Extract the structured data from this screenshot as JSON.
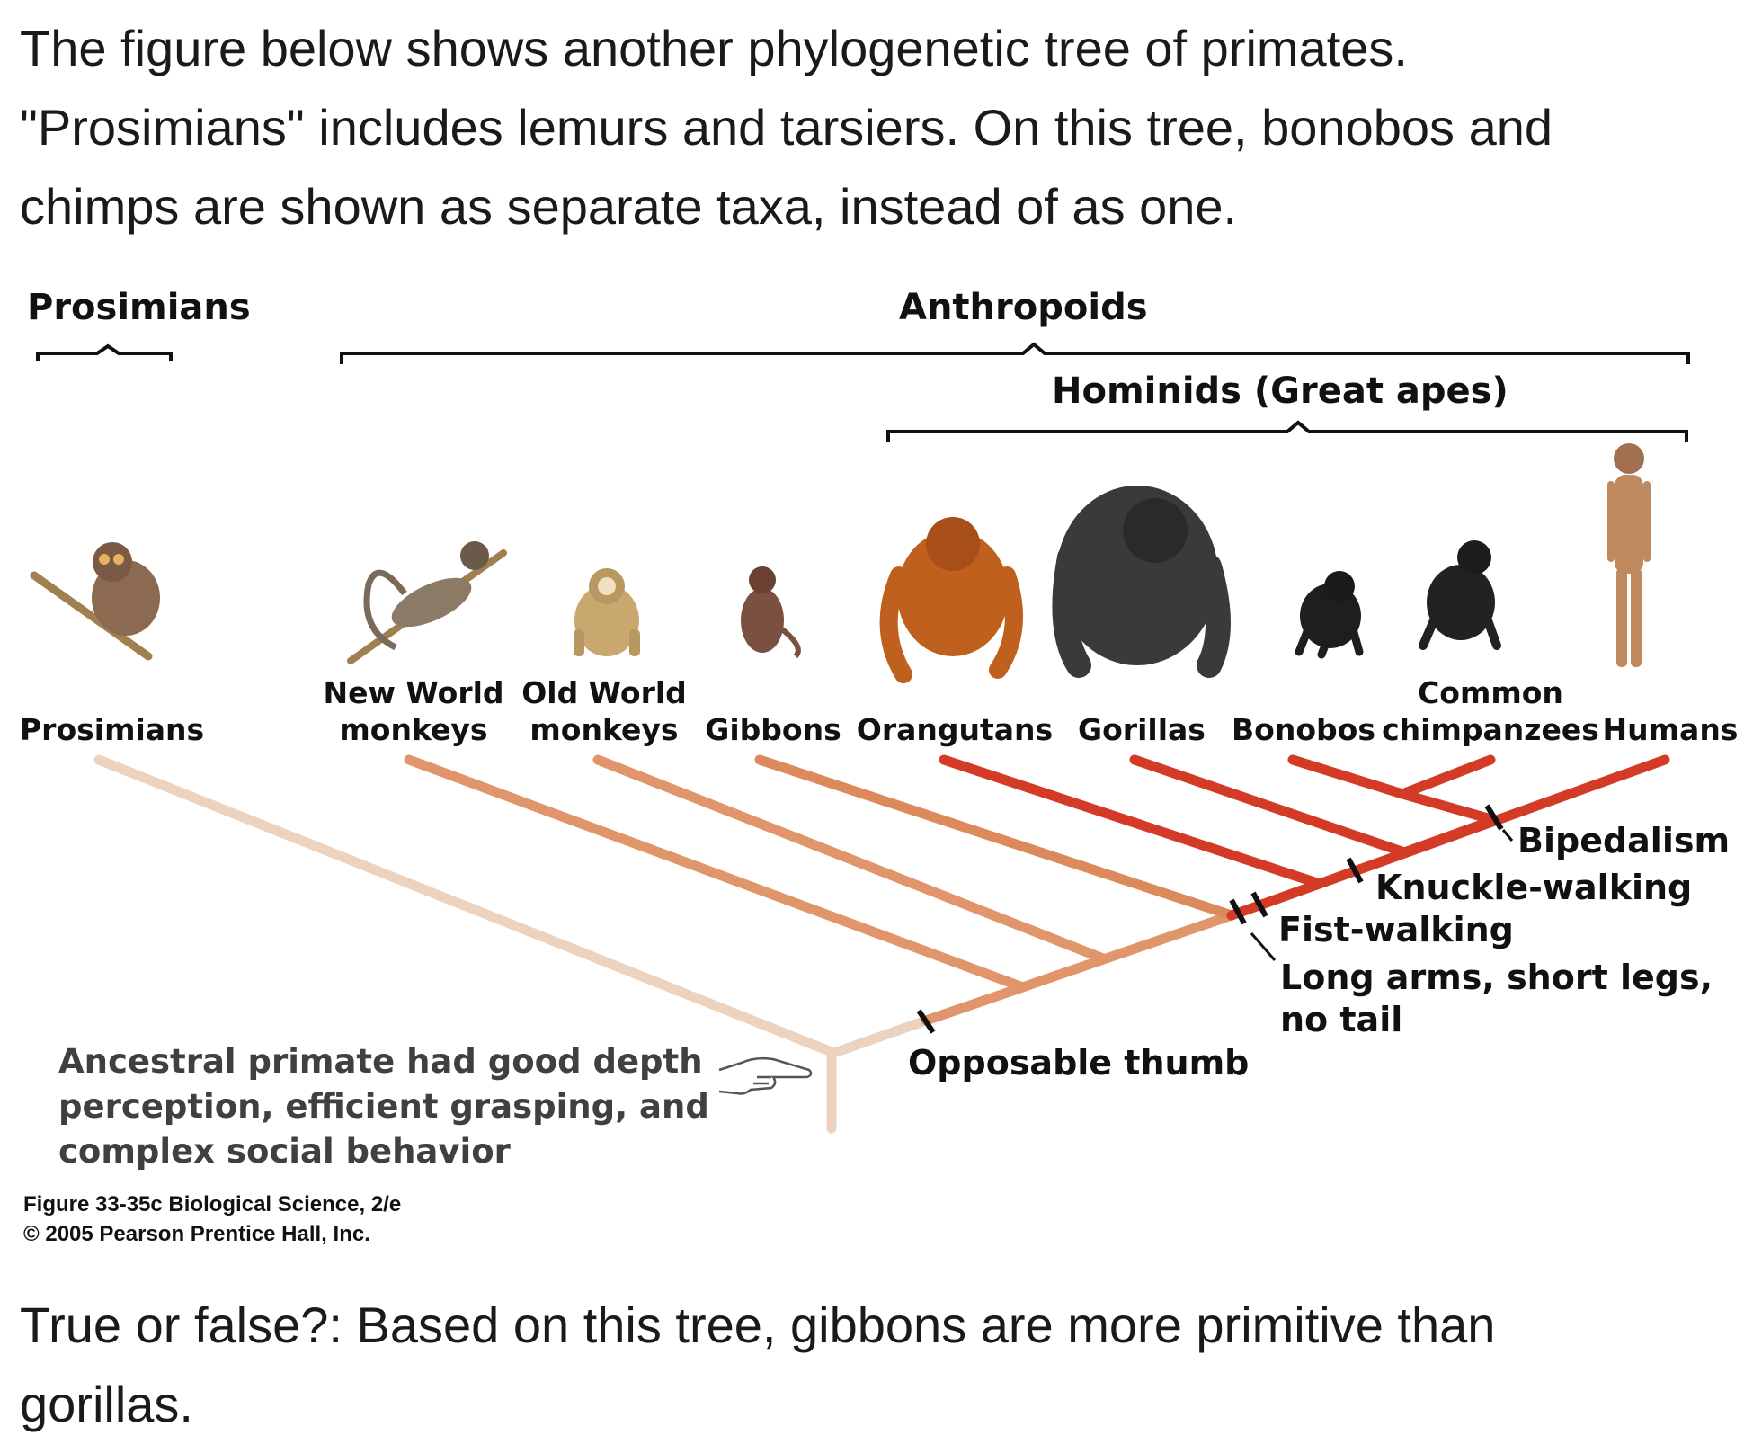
{
  "intro_lines": [
    "The figure below shows another phylogenetic tree of primates.",
    "\"Prosimians\" includes lemurs and tarsiers. On this tree, bonobos and",
    "chimps are shown as separate taxa, instead of as one."
  ],
  "groups": {
    "prosimians": "Prosimians",
    "anthropoids": "Anthropoids",
    "hominids": "Hominids (Great apes)"
  },
  "taxa": {
    "prosimians": "Prosimians",
    "new_world_1": "New World",
    "new_world_2": "monkeys",
    "old_world_1": "Old World",
    "old_world_2": "monkeys",
    "gibbons": "Gibbons",
    "orangutans": "Orangutans",
    "gorillas": "Gorillas",
    "bonobos": "Bonobos",
    "common_1": "Common",
    "common_2": "chimpanzees",
    "humans": "Humans"
  },
  "traits": {
    "bipedalism": "Bipedalism",
    "knuckle_walking": "Knuckle-walking",
    "fist_walking": "Fist-walking",
    "long_arms_1": "Long arms, short legs,",
    "long_arms_2": "no tail",
    "opposable_thumb": "Opposable thumb"
  },
  "ancestral_note": [
    "Ancestral primate had good depth",
    "perception, efficient grasping, and",
    "complex social behavior"
  ],
  "credit": [
    "Figure 33-35c  Biological Science, 2/e",
    "© 2005 Pearson Prentice Hall, Inc."
  ],
  "question_lines": [
    "True or false?: Based on this tree, gibbons are more primitive than",
    "gorillas."
  ],
  "colors": {
    "prosimian_branch": "#ecd3bf",
    "monkey_branch": "#e0956a",
    "gibbon_branch": "#dc8a5c",
    "ape_branch": "#d33b26",
    "trait_mark": "#111111"
  }
}
